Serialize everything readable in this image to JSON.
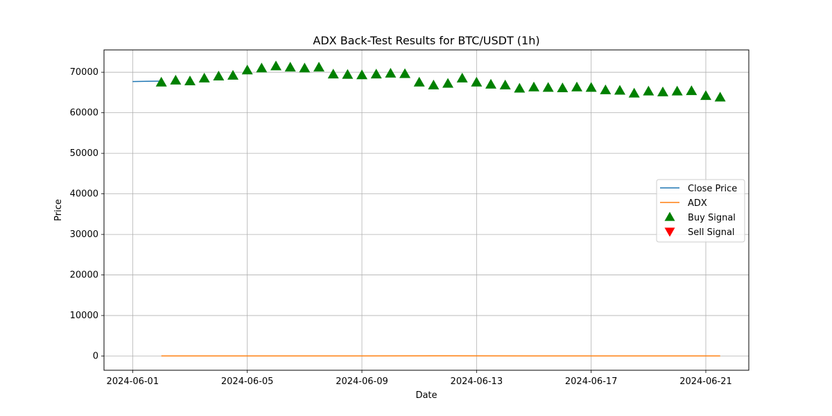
{
  "chart_data": {
    "type": "line",
    "title": "ADX Back-Test Results for BTC/USDT (1h)",
    "xlabel": "Date",
    "ylabel": "Price",
    "ylim": [
      -3500,
      75500
    ],
    "xlim": [
      "2024-05-31T00:00",
      "2024-06-22T12:00"
    ],
    "yticks": [
      0,
      10000,
      20000,
      30000,
      40000,
      50000,
      60000,
      70000
    ],
    "xticks": [
      "2024-06-01",
      "2024-06-05",
      "2024-06-09",
      "2024-06-13",
      "2024-06-17",
      "2024-06-21"
    ],
    "grid": true,
    "legend_position": "center-right",
    "series": [
      {
        "name": "Close Price",
        "kind": "line",
        "color": "#1f77b4",
        "points": [
          [
            "2024-06-01T00:00",
            67700
          ],
          [
            "2024-06-01T12:00",
            67750
          ],
          [
            "2024-06-02T00:00",
            67800
          ]
        ]
      },
      {
        "name": "ADX",
        "kind": "line",
        "color": "#ff7f0e",
        "points": [
          [
            "2024-06-02T00:00",
            25
          ],
          [
            "2024-06-07T00:00",
            30
          ],
          [
            "2024-06-12T00:00",
            40
          ],
          [
            "2024-06-17T00:00",
            30
          ],
          [
            "2024-06-21T12:00",
            25
          ]
        ]
      },
      {
        "name": "Buy Signal",
        "kind": "marker-up",
        "color": "#008000",
        "points": [
          [
            "2024-06-02T00:00",
            67500
          ],
          [
            "2024-06-02T12:00",
            68000
          ],
          [
            "2024-06-03T00:00",
            67800
          ],
          [
            "2024-06-03T12:00",
            68500
          ],
          [
            "2024-06-04T00:00",
            69000
          ],
          [
            "2024-06-04T12:00",
            69200
          ],
          [
            "2024-06-05T00:00",
            70500
          ],
          [
            "2024-06-05T12:00",
            71000
          ],
          [
            "2024-06-06T00:00",
            71500
          ],
          [
            "2024-06-06T12:00",
            71200
          ],
          [
            "2024-06-07T00:00",
            71000
          ],
          [
            "2024-06-07T12:00",
            71200
          ],
          [
            "2024-06-08T00:00",
            69500
          ],
          [
            "2024-06-08T12:00",
            69400
          ],
          [
            "2024-06-09T00:00",
            69300
          ],
          [
            "2024-06-09T12:00",
            69500
          ],
          [
            "2024-06-10T00:00",
            69700
          ],
          [
            "2024-06-10T12:00",
            69600
          ],
          [
            "2024-06-11T00:00",
            67500
          ],
          [
            "2024-06-11T12:00",
            66800
          ],
          [
            "2024-06-12T00:00",
            67200
          ],
          [
            "2024-06-12T12:00",
            68500
          ],
          [
            "2024-06-13T00:00",
            67500
          ],
          [
            "2024-06-13T12:00",
            67000
          ],
          [
            "2024-06-14T00:00",
            66800
          ],
          [
            "2024-06-14T12:00",
            66000
          ],
          [
            "2024-06-15T00:00",
            66300
          ],
          [
            "2024-06-15T12:00",
            66200
          ],
          [
            "2024-06-16T00:00",
            66100
          ],
          [
            "2024-06-16T12:00",
            66300
          ],
          [
            "2024-06-17T00:00",
            66200
          ],
          [
            "2024-06-17T12:00",
            65600
          ],
          [
            "2024-06-18T00:00",
            65500
          ],
          [
            "2024-06-18T12:00",
            64800
          ],
          [
            "2024-06-19T00:00",
            65300
          ],
          [
            "2024-06-19T12:00",
            65100
          ],
          [
            "2024-06-20T00:00",
            65300
          ],
          [
            "2024-06-20T12:00",
            65400
          ],
          [
            "2024-06-21T00:00",
            64200
          ],
          [
            "2024-06-21T12:00",
            63800
          ]
        ]
      },
      {
        "name": "Sell Signal",
        "kind": "marker-down",
        "color": "#ff0000",
        "points": []
      }
    ]
  }
}
